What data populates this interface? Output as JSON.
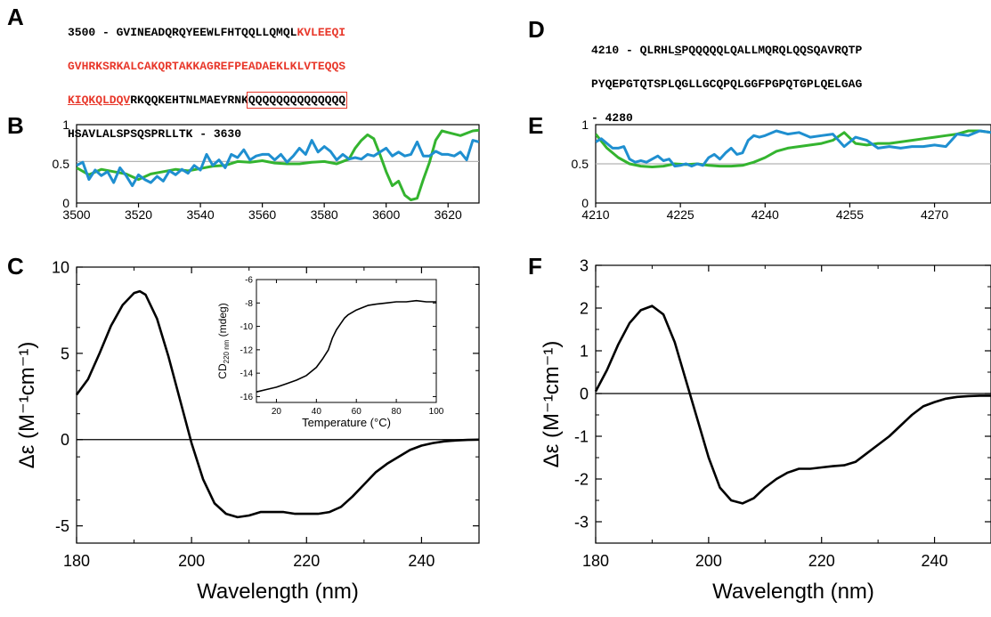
{
  "panels": {
    "A": {
      "letter": "A",
      "line1_black": "3500 - GVINEADQRQYEEWLFHTQQLLQMQL",
      "line1_red": "KVLEEQI",
      "line2_red": "GVHRKSRKALCAKQRTAKKAGREFPEADAEKLKLVTEQQS",
      "line3_red": "KIQKQLDQV",
      "line3_black": "RKQQKEHTNLMAEYRNK",
      "line3_boxed": "QQQQQQQQQQQQQQ",
      "line4_black": "HSAVLALSPSQSPRLLTK - 3630"
    },
    "B": {
      "letter": "B"
    },
    "C": {
      "letter": "C"
    },
    "D": {
      "letter": "D",
      "line1_pre": "4210 - QLRHL",
      "line1_s": "S",
      "line1_post": "PQQQQQLQALLMQRQLQQSQAVRQTP",
      "line2": "PYQEPGTQTSPLQGLLGCQPQLGGFPGPQTGPLQELGAG",
      "line3": "- 4280"
    },
    "E": {
      "letter": "E"
    },
    "F": {
      "letter": "F"
    }
  },
  "colors": {
    "green": "#34b42f",
    "blue": "#1f8fd0",
    "red": "#e8382b",
    "gray": "#b4b4b4"
  },
  "chart_data": [
    {
      "id": "B",
      "type": "line",
      "xlim": [
        3500,
        3630
      ],
      "ylim": [
        0,
        1
      ],
      "xticks": [
        3500,
        3520,
        3540,
        3560,
        3580,
        3600,
        3620
      ],
      "yticks": [
        0,
        0.5,
        1
      ],
      "reference_line": 0.53,
      "series": [
        {
          "color": "green",
          "x": [
            3500,
            3504,
            3508,
            3512,
            3516,
            3520,
            3524,
            3528,
            3532,
            3536,
            3540,
            3544,
            3548,
            3552,
            3556,
            3560,
            3564,
            3568,
            3572,
            3576,
            3580,
            3584,
            3588,
            3590,
            3592,
            3594,
            3596,
            3598,
            3600,
            3602,
            3604,
            3606,
            3608,
            3610,
            3612,
            3614,
            3616,
            3618,
            3620,
            3624,
            3628,
            3630
          ],
          "y": [
            0.45,
            0.36,
            0.43,
            0.4,
            0.37,
            0.3,
            0.37,
            0.4,
            0.43,
            0.41,
            0.44,
            0.47,
            0.48,
            0.53,
            0.52,
            0.54,
            0.51,
            0.5,
            0.5,
            0.52,
            0.53,
            0.5,
            0.56,
            0.7,
            0.8,
            0.87,
            0.82,
            0.62,
            0.4,
            0.22,
            0.28,
            0.1,
            0.04,
            0.06,
            0.3,
            0.52,
            0.8,
            0.92,
            0.9,
            0.86,
            0.92,
            0.93
          ]
        },
        {
          "color": "blue",
          "x": [
            3500,
            3502,
            3504,
            3506,
            3508,
            3510,
            3512,
            3514,
            3516,
            3518,
            3520,
            3522,
            3524,
            3526,
            3528,
            3530,
            3532,
            3534,
            3536,
            3538,
            3540,
            3542,
            3544,
            3546,
            3548,
            3550,
            3552,
            3554,
            3556,
            3558,
            3560,
            3562,
            3564,
            3566,
            3568,
            3570,
            3572,
            3574,
            3576,
            3578,
            3580,
            3582,
            3584,
            3586,
            3588,
            3590,
            3592,
            3594,
            3596,
            3598,
            3600,
            3602,
            3604,
            3606,
            3608,
            3610,
            3612,
            3614,
            3616,
            3618,
            3620,
            3622,
            3624,
            3626,
            3628,
            3630
          ],
          "y": [
            0.48,
            0.52,
            0.3,
            0.42,
            0.35,
            0.4,
            0.26,
            0.45,
            0.35,
            0.22,
            0.36,
            0.3,
            0.26,
            0.34,
            0.28,
            0.41,
            0.36,
            0.43,
            0.38,
            0.48,
            0.42,
            0.62,
            0.48,
            0.55,
            0.45,
            0.62,
            0.58,
            0.68,
            0.55,
            0.6,
            0.62,
            0.62,
            0.55,
            0.62,
            0.52,
            0.6,
            0.7,
            0.62,
            0.8,
            0.65,
            0.72,
            0.66,
            0.55,
            0.62,
            0.56,
            0.58,
            0.56,
            0.62,
            0.6,
            0.65,
            0.7,
            0.6,
            0.65,
            0.6,
            0.62,
            0.78,
            0.6,
            0.6,
            0.66,
            0.62,
            0.62,
            0.6,
            0.65,
            0.55,
            0.8,
            0.78
          ]
        }
      ]
    },
    {
      "id": "E",
      "type": "line",
      "xlim": [
        4210,
        4280
      ],
      "ylim": [
        0,
        1
      ],
      "xticks": [
        4210,
        4225,
        4240,
        4255,
        4270
      ],
      "yticks": [
        0,
        0.5,
        1
      ],
      "reference_line": 0.5,
      "series": [
        {
          "color": "green",
          "x": [
            4210,
            4212,
            4214,
            4216,
            4218,
            4220,
            4222,
            4224,
            4226,
            4228,
            4230,
            4232,
            4234,
            4236,
            4238,
            4240,
            4242,
            4244,
            4246,
            4248,
            4250,
            4252,
            4254,
            4256,
            4258,
            4260,
            4262,
            4264,
            4266,
            4268,
            4270,
            4272,
            4274,
            4276,
            4278,
            4280
          ],
          "y": [
            0.88,
            0.7,
            0.58,
            0.5,
            0.47,
            0.46,
            0.47,
            0.5,
            0.49,
            0.5,
            0.48,
            0.47,
            0.47,
            0.48,
            0.52,
            0.58,
            0.66,
            0.7,
            0.72,
            0.74,
            0.76,
            0.8,
            0.9,
            0.76,
            0.74,
            0.76,
            0.76,
            0.78,
            0.8,
            0.82,
            0.84,
            0.86,
            0.88,
            0.92,
            0.92,
            0.9
          ]
        },
        {
          "color": "blue",
          "x": [
            4210,
            4211,
            4212,
            4213,
            4214,
            4215,
            4216,
            4217,
            4218,
            4219,
            4220,
            4221,
            4222,
            4223,
            4224,
            4225,
            4226,
            4227,
            4228,
            4229,
            4230,
            4231,
            4232,
            4233,
            4234,
            4235,
            4236,
            4237,
            4238,
            4239,
            4240,
            4242,
            4244,
            4246,
            4248,
            4250,
            4252,
            4254,
            4256,
            4258,
            4260,
            4262,
            4264,
            4266,
            4268,
            4270,
            4272,
            4274,
            4276,
            4278,
            4280
          ],
          "y": [
            0.78,
            0.82,
            0.76,
            0.7,
            0.7,
            0.72,
            0.56,
            0.52,
            0.54,
            0.52,
            0.56,
            0.6,
            0.54,
            0.56,
            0.47,
            0.48,
            0.5,
            0.47,
            0.5,
            0.48,
            0.58,
            0.62,
            0.56,
            0.64,
            0.7,
            0.62,
            0.64,
            0.8,
            0.86,
            0.84,
            0.86,
            0.92,
            0.88,
            0.9,
            0.84,
            0.86,
            0.88,
            0.72,
            0.84,
            0.8,
            0.7,
            0.72,
            0.7,
            0.72,
            0.72,
            0.74,
            0.72,
            0.88,
            0.86,
            0.92,
            0.9
          ]
        }
      ]
    },
    {
      "id": "C",
      "type": "line",
      "xlim": [
        180,
        250
      ],
      "ylim": [
        -6,
        10
      ],
      "xticks": [
        180,
        200,
        220,
        240
      ],
      "yticks": [
        -5,
        0,
        5,
        10
      ],
      "xlabel": "Wavelength (nm)",
      "ylabel": "Δε (M⁻¹cm⁻¹)",
      "series": [
        {
          "x": [
            180,
            182,
            184,
            186,
            188,
            190,
            191,
            192,
            194,
            196,
            198,
            200,
            202,
            204,
            206,
            208,
            210,
            212,
            214,
            216,
            218,
            220,
            222,
            224,
            226,
            228,
            230,
            232,
            234,
            236,
            238,
            240,
            242,
            244,
            246,
            248,
            250
          ],
          "y": [
            2.6,
            3.5,
            5.0,
            6.6,
            7.8,
            8.5,
            8.6,
            8.4,
            7.0,
            4.8,
            2.3,
            -0.2,
            -2.3,
            -3.7,
            -4.3,
            -4.5,
            -4.4,
            -4.2,
            -4.2,
            -4.2,
            -4.3,
            -4.3,
            -4.3,
            -4.2,
            -3.9,
            -3.3,
            -2.6,
            -1.9,
            -1.4,
            -1.0,
            -0.6,
            -0.35,
            -0.2,
            -0.1,
            -0.05,
            -0.02,
            0
          ]
        }
      ],
      "inset": {
        "type": "line",
        "xlim": [
          10,
          100
        ],
        "ylim": [
          -16.5,
          -6
        ],
        "xticks": [
          20,
          40,
          60,
          80,
          100
        ],
        "yticks": [
          -16,
          -14,
          -12,
          -10,
          -8,
          -6
        ],
        "xlabel": "Temperature (°C)",
        "ylabel_main": "CD",
        "ylabel_sub": "220 nm",
        "ylabel_unit": " (mdeg)",
        "x": [
          10,
          15,
          20,
          25,
          30,
          35,
          40,
          43,
          46,
          48,
          50,
          52,
          54,
          56,
          58,
          60,
          63,
          66,
          70,
          75,
          80,
          85,
          90,
          95,
          100
        ],
        "y": [
          -15.6,
          -15.4,
          -15.2,
          -14.9,
          -14.6,
          -14.2,
          -13.5,
          -12.8,
          -12.0,
          -11.0,
          -10.3,
          -9.8,
          -9.3,
          -9.0,
          -8.8,
          -8.6,
          -8.4,
          -8.2,
          -8.1,
          -8.0,
          -7.9,
          -7.9,
          -7.8,
          -7.9,
          -7.9
        ]
      }
    },
    {
      "id": "F",
      "type": "line",
      "xlim": [
        180,
        250
      ],
      "ylim": [
        -3.5,
        3
      ],
      "xticks": [
        180,
        200,
        220,
        240
      ],
      "yticks": [
        -3,
        -2,
        -1,
        0,
        1,
        2,
        3
      ],
      "xlabel": "Wavelength (nm)",
      "ylabel": "Δε (M⁻¹cm⁻¹)",
      "series": [
        {
          "x": [
            180,
            182,
            184,
            186,
            188,
            190,
            192,
            194,
            196,
            198,
            200,
            202,
            204,
            206,
            208,
            210,
            212,
            214,
            216,
            218,
            220,
            222,
            224,
            226,
            228,
            230,
            232,
            234,
            236,
            238,
            240,
            242,
            244,
            246,
            248,
            250
          ],
          "y": [
            0.05,
            0.55,
            1.15,
            1.65,
            1.95,
            2.05,
            1.85,
            1.2,
            0.3,
            -0.6,
            -1.5,
            -2.2,
            -2.5,
            -2.57,
            -2.45,
            -2.2,
            -2.0,
            -1.85,
            -1.76,
            -1.76,
            -1.73,
            -1.7,
            -1.68,
            -1.6,
            -1.4,
            -1.2,
            -1.0,
            -0.75,
            -0.5,
            -0.3,
            -0.2,
            -0.12,
            -0.08,
            -0.06,
            -0.05,
            -0.05
          ]
        }
      ]
    }
  ]
}
